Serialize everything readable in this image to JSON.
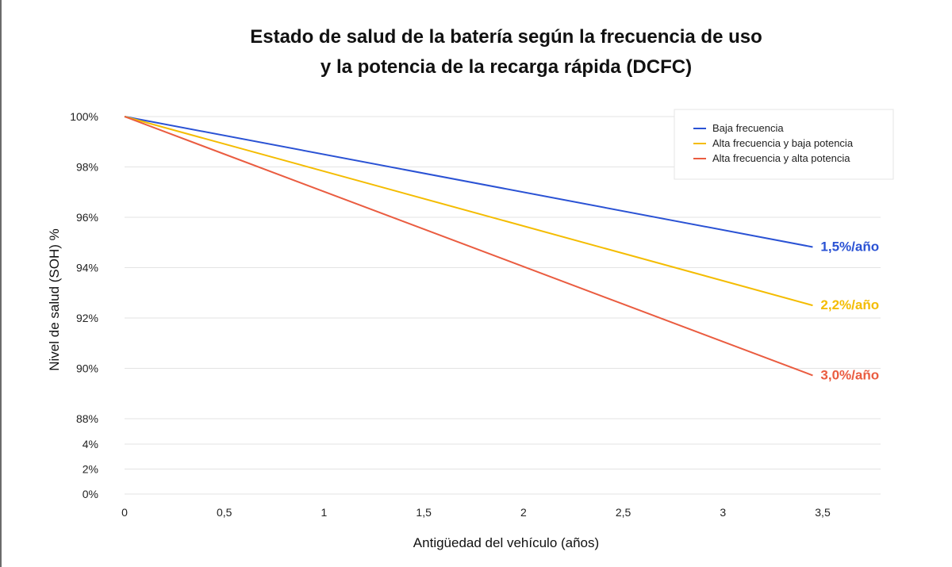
{
  "chart_data": {
    "type": "line",
    "title_lines": [
      "Estado de salud de la batería según la frecuencia de uso",
      "y la potencia de la recarga rápida (DCFC)"
    ],
    "xlabel": "Antigüedad del vehículo (años)",
    "ylabel": "Nivel de salud (SOH) %",
    "x_ticks": [
      "0",
      "0,5",
      "1",
      "1,5",
      "2",
      "2,5",
      "3",
      "3,5"
    ],
    "x_tick_values": [
      0,
      0.5,
      1,
      1.5,
      2,
      2.5,
      3,
      3.5
    ],
    "xlim": [
      0,
      3.8
    ],
    "y_ticks_upper": [
      "100%",
      "98%",
      "96%",
      "94%",
      "92%",
      "90%",
      "88%"
    ],
    "y_tick_upper_values": [
      100,
      98,
      96,
      94,
      92,
      90,
      88
    ],
    "y_ticks_lower": [
      "4%",
      "2%",
      "0%"
    ],
    "y_tick_lower_values": [
      4,
      2,
      0
    ],
    "grid": true,
    "legend_position": "top-right",
    "series": [
      {
        "name": "Baja frecuencia",
        "color": "#2a52d4",
        "x": [
          0,
          3.45
        ],
        "y": [
          100,
          94.82
        ],
        "end_label": "1,5%/año"
      },
      {
        "name": "Alta frecuencia y baja potencia",
        "color": "#f4bc00",
        "x": [
          0,
          3.45
        ],
        "y": [
          100,
          92.5
        ],
        "end_label": "2,2%/año"
      },
      {
        "name": "Alta frecuencia y alta potencia",
        "color": "#ea5c40",
        "x": [
          0,
          3.45
        ],
        "y": [
          100,
          89.72
        ],
        "end_label": "3,0%/año"
      }
    ]
  }
}
